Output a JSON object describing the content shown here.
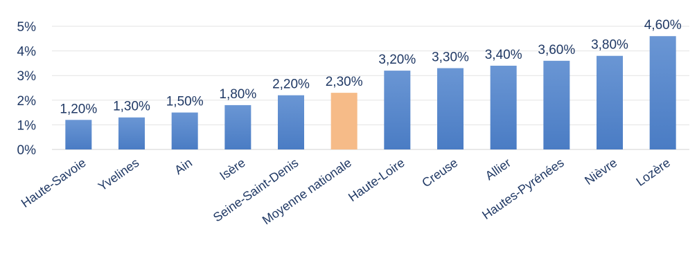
{
  "chart_data": {
    "type": "bar",
    "title": "",
    "xlabel": "",
    "ylabel": "",
    "categories": [
      "Haute-Savoie",
      "Yvelines",
      "Ain",
      "Isère",
      "Seine-Saint-Denis",
      "Moyenne nationale",
      "Haute-Loire",
      "Creuse",
      "Allier",
      "Hautes-Pyrénées",
      "Nièvre",
      "Lozère"
    ],
    "values": [
      1.2,
      1.3,
      1.5,
      1.8,
      2.2,
      2.3,
      3.2,
      3.3,
      3.4,
      3.6,
      3.8,
      4.6
    ],
    "value_labels": [
      "1,20%",
      "1,30%",
      "1,50%",
      "1,80%",
      "2,20%",
      "2,30%",
      "3,20%",
      "3,30%",
      "3,40%",
      "3,60%",
      "3,80%",
      "4,60%"
    ],
    "y_ticks": [
      0,
      1,
      2,
      3,
      4,
      5
    ],
    "y_tick_labels": [
      "0%",
      "1%",
      "2%",
      "3%",
      "4%",
      "5%"
    ],
    "ylim": [
      0,
      5
    ],
    "grid": true,
    "legend": "none",
    "highlight_category": "Moyenne nationale",
    "colors": {
      "bar": "#4a7cc4",
      "bar_top": "#6a96d4",
      "highlight": "#f6bb88",
      "text": "#1f3864"
    }
  }
}
